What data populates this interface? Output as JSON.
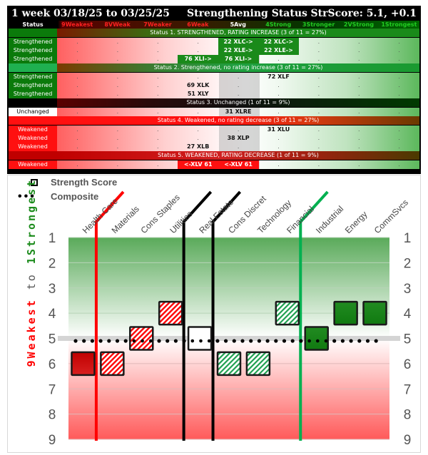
{
  "header": {
    "period": "1 week 03/18/25 to 03/25/25",
    "title": "Strengthening Status",
    "str_score": "StrScore: 5.1, +0.1"
  },
  "columns": {
    "status": "Status",
    "levels": [
      {
        "label": "9Weakest",
        "color": "#ff2020"
      },
      {
        "label": "8VWeak",
        "color": "#ff2020"
      },
      {
        "label": "7Weaker",
        "color": "#ff2020"
      },
      {
        "label": "6Weak",
        "color": "#ff2020"
      },
      {
        "label": "5Avg",
        "color": "#ffffff"
      },
      {
        "label": "4Strong",
        "color": "#22cc22"
      },
      {
        "label": "3Stronger",
        "color": "#22cc22"
      },
      {
        "label": "2VStrong",
        "color": "#22cc22"
      },
      {
        "label": "1Strongest",
        "color": "#22cc22"
      }
    ]
  },
  "sections": [
    {
      "label": "Status 1. STRENGTHENED, RATING INCREASE (3 of 11 = 27%)",
      "rows": [
        {
          "status": "Strengthened",
          "cells": [
            ".",
            ".",
            ".",
            ".",
            "22 XLC->",
            "22 XLC->",
            ".",
            ".",
            "."
          ],
          "hl": [
            4,
            5
          ]
        },
        {
          "status": "Strengthened",
          "cells": [
            ".",
            ".",
            ".",
            ".",
            "22 XLE->",
            "22 XLE->",
            ".",
            ".",
            "."
          ],
          "hl": [
            4,
            5
          ]
        },
        {
          "status": "Strengthened",
          "cells": [
            ".",
            ".",
            ".",
            "76 XLI->",
            "76 XLI->",
            ".",
            ".",
            ".",
            "."
          ],
          "hl": [
            3,
            4
          ]
        }
      ]
    },
    {
      "label": "Status 2. Strengthened, no rating increase (3 of 11 = 27%)",
      "rows": [
        {
          "status": "Strengthened",
          "cells": [
            ".",
            ".",
            ".",
            ".",
            ".",
            "72 XLF",
            ".",
            ".",
            "."
          ]
        },
        {
          "status": "Strengthened",
          "cells": [
            ".",
            ".",
            ".",
            "69 XLK",
            ".",
            ".",
            ".",
            ".",
            "."
          ]
        },
        {
          "status": "Strengthened",
          "cells": [
            ".",
            ".",
            ".",
            "51 XLY",
            ".",
            ".",
            ".",
            ".",
            "."
          ]
        }
      ]
    },
    {
      "label": "Status 3. Unchanged (1 of 11 = 9%)",
      "rows": [
        {
          "status": "Unchanged",
          "cells": [
            ".",
            ".",
            ".",
            ".",
            "31 XLRE",
            ".",
            ".",
            ".",
            "."
          ]
        }
      ]
    },
    {
      "label": "Status 4. Weakened, no rating decrease (3 of 11 = 27%)",
      "rows": [
        {
          "status": "Weakened",
          "cells": [
            ".",
            ".",
            ".",
            ".",
            ".",
            "31 XLU",
            ".",
            ".",
            "."
          ]
        },
        {
          "status": "Weakened",
          "cells": [
            ".",
            ".",
            ".",
            ".",
            "38 XLP",
            ".",
            ".",
            ".",
            "."
          ]
        },
        {
          "status": "Weakened",
          "cells": [
            ".",
            ".",
            ".",
            "27 XLB",
            ".",
            ".",
            ".",
            ".",
            "."
          ]
        }
      ]
    },
    {
      "label": "Status 5. WEAKENED, RATING DECREASE (1 of 11 = 9%)",
      "rows": [
        {
          "status": "Weakened",
          "cells": [
            ".",
            ".",
            ".",
            "<-XLV 61",
            "<-XLV 61",
            ".",
            ".",
            ".",
            "."
          ],
          "hl": [
            3,
            4
          ]
        }
      ]
    }
  ],
  "chart_data": {
    "type": "scatter",
    "title": "",
    "categories": [
      "Health Care",
      "Materials",
      "Cons Staples",
      "Utilities",
      "Real Estate",
      "Cons Discret",
      "Technology",
      "Financial",
      "Industrial",
      "Energy",
      "CommSvcs"
    ],
    "series": [
      {
        "name": "Strength Score",
        "marker": "square",
        "values": [
          6,
          6,
          5,
          4,
          5,
          6,
          6,
          4,
          5,
          4,
          4
        ],
        "styles": [
          "solid-red",
          "hatched-red",
          "hatched-red",
          "hatched-red",
          "white",
          "hatched-green",
          "hatched-green",
          "hatched-green",
          "solid-green",
          "solid-green",
          "solid-green"
        ]
      },
      {
        "name": "Composite",
        "marker": "dots",
        "value": 5.1
      }
    ],
    "legend": [
      "Strength Score",
      "Composite"
    ],
    "ylabel_top": "1Strongest",
    "ylabel_mid": "to",
    "ylabel_bottom": "9Weakest",
    "y_ticks": [
      1,
      2,
      3,
      4,
      5,
      6,
      7,
      8,
      9
    ],
    "ylim": [
      1,
      9
    ],
    "y_inverted": true,
    "avg_line": 5,
    "group_dividers": [
      {
        "after": "Health Care",
        "color": "#ff0000"
      },
      {
        "after": "Utilities",
        "color": "#000000"
      },
      {
        "after": "Real Estate",
        "color": "#000000"
      },
      {
        "after": "Financial",
        "color": "#00b050"
      }
    ],
    "grid": true,
    "legend_position": "top-left"
  }
}
